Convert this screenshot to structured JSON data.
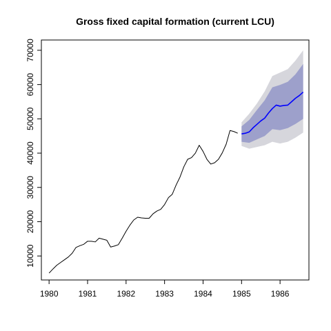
{
  "chart_data": {
    "type": "line",
    "title": "Gross fixed capital formation (current LCU)",
    "xlabel": "",
    "ylabel": "",
    "xlim": [
      1979.8,
      1986.75
    ],
    "ylim": [
      3000,
      73000
    ],
    "x_ticks": [
      1980,
      1981,
      1982,
      1983,
      1984,
      1985,
      1986
    ],
    "x_tick_labels": [
      "1980",
      "1981",
      "1982",
      "1983",
      "1984",
      "1985",
      "1986"
    ],
    "y_ticks": [
      10000,
      20000,
      30000,
      40000,
      50000,
      60000,
      70000
    ],
    "y_tick_labels": [
      "10000",
      "20000",
      "30000",
      "40000",
      "50000",
      "60000",
      "70000"
    ],
    "grid": false,
    "series": [
      {
        "color": "#000000",
        "x": [
          1980.0,
          1980.1,
          1980.2,
          1980.3,
          1980.4,
          1980.5,
          1980.6,
          1980.7,
          1980.8,
          1980.9,
          1981.0,
          1981.1,
          1981.2,
          1981.3,
          1981.4,
          1981.5,
          1981.6,
          1981.7,
          1981.8,
          1981.9,
          1982.0,
          1982.1,
          1982.2,
          1982.3,
          1982.4,
          1982.5,
          1982.6,
          1982.7,
          1982.8,
          1982.9,
          1983.0,
          1983.1,
          1983.2,
          1983.3,
          1983.4,
          1983.5,
          1983.6,
          1983.7,
          1983.8,
          1983.9,
          1984.0,
          1984.1,
          1984.2,
          1984.3,
          1984.4,
          1984.5,
          1984.6,
          1984.7,
          1984.8,
          1984.9
        ],
        "y": [
          5000,
          6200,
          7300,
          8100,
          8900,
          9700,
          10800,
          12500,
          13000,
          13400,
          14300,
          14300,
          14100,
          15200,
          14900,
          14600,
          12600,
          12900,
          13300,
          15200,
          17200,
          19000,
          20500,
          21300,
          21100,
          21000,
          21000,
          22300,
          23100,
          23600,
          25000,
          27000,
          28000,
          30700,
          33000,
          36000,
          38200,
          38700,
          40000,
          42300,
          40500,
          38200,
          36800,
          37200,
          38200,
          40100,
          42600,
          46600,
          46300,
          45800
        ]
      },
      {
        "color": "#0000ff",
        "x": [
          1985.0,
          1985.1,
          1985.2,
          1985.3,
          1985.4,
          1985.5,
          1985.6,
          1985.7,
          1985.8,
          1985.9,
          1986.0,
          1986.1,
          1986.2,
          1986.3,
          1986.4,
          1986.5,
          1986.6
        ],
        "y": [
          45600,
          45800,
          46200,
          47400,
          48400,
          49400,
          50200,
          51700,
          53000,
          54000,
          53700,
          53900,
          54000,
          55000,
          56000,
          56800,
          57800
        ]
      }
    ],
    "bands": [
      {
        "color": "#d6d6dc",
        "x": [
          1985.0,
          1985.2,
          1985.4,
          1985.6,
          1985.8,
          1986.0,
          1986.2,
          1986.4,
          1986.6
        ],
        "lower": [
          42100,
          41300,
          41800,
          42300,
          43300,
          42800,
          43300,
          44500,
          46000
        ],
        "upper": [
          49000,
          51500,
          54500,
          58000,
          62500,
          63500,
          64500,
          67000,
          70000
        ]
      },
      {
        "color": "#9da0cb",
        "x": [
          1985.0,
          1985.2,
          1985.4,
          1985.6,
          1985.8,
          1986.0,
          1986.2,
          1986.4,
          1986.6
        ],
        "lower": [
          43300,
          43000,
          44000,
          45000,
          47000,
          46700,
          47300,
          48500,
          50000
        ],
        "upper": [
          47800,
          49700,
          52600,
          55400,
          59200,
          59900,
          60800,
          63000,
          66000
        ]
      }
    ]
  }
}
